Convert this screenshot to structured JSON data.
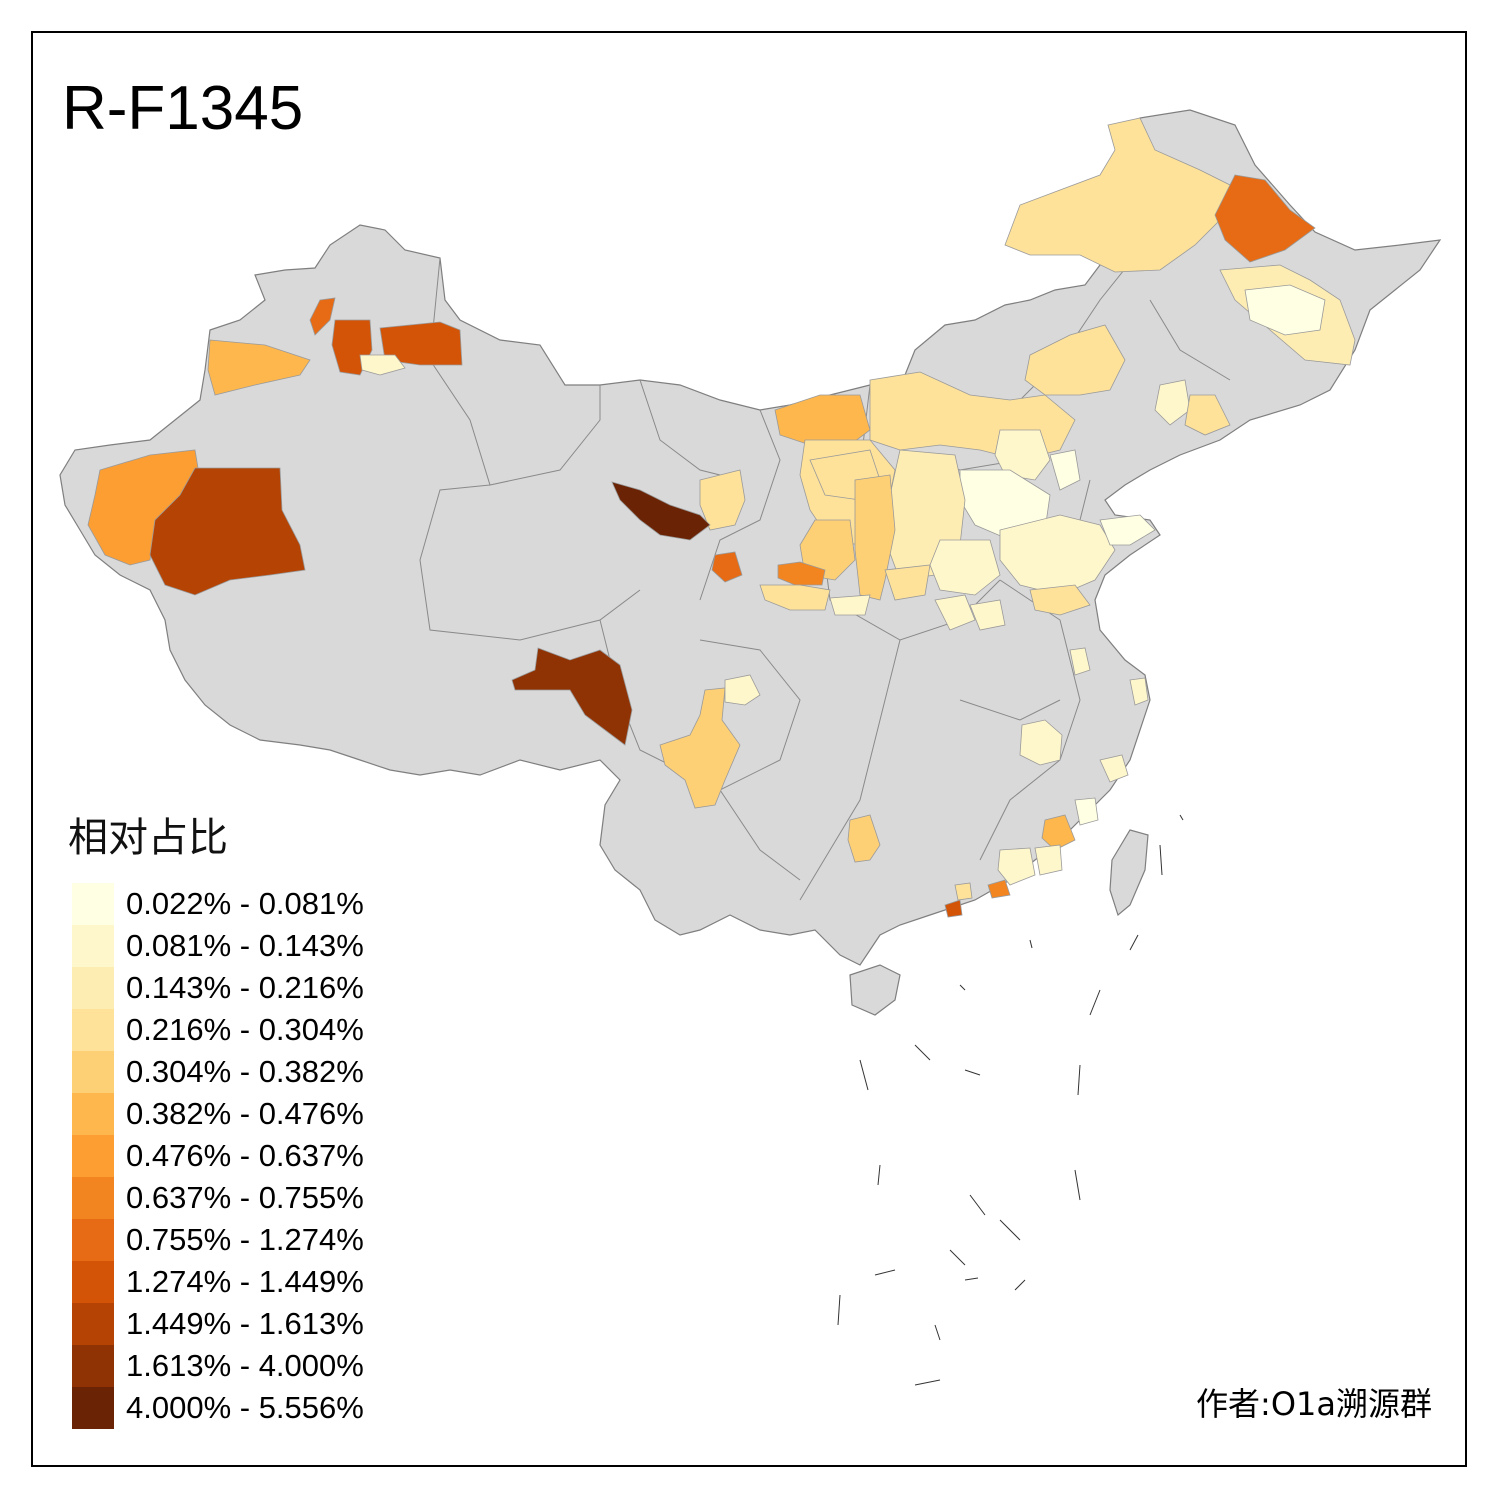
{
  "title": "R-F1345",
  "legend": {
    "title": "相对占比",
    "items": [
      {
        "label": "0.022% - 0.081%",
        "color": "#FFFFE4"
      },
      {
        "label": "0.081% - 0.143%",
        "color": "#FFF7CC"
      },
      {
        "label": "0.143% - 0.216%",
        "color": "#FEEDB3"
      },
      {
        "label": "0.216% - 0.304%",
        "color": "#FEE29A"
      },
      {
        "label": "0.304% - 0.382%",
        "color": "#FED076"
      },
      {
        "label": "0.382% - 0.476%",
        "color": "#FEB74C"
      },
      {
        "label": "0.476% - 0.637%",
        "color": "#FD9E33"
      },
      {
        "label": "0.637% - 0.755%",
        "color": "#F38521"
      },
      {
        "label": "0.755% - 1.274%",
        "color": "#E66B14"
      },
      {
        "label": "1.274% - 1.449%",
        "color": "#D35407"
      },
      {
        "label": "1.449% - 1.613%",
        "color": "#B44304"
      },
      {
        "label": "1.613% - 4.000%",
        "color": "#8F3204"
      },
      {
        "label": "4.000% - 5.556%",
        "color": "#6A2405"
      }
    ]
  },
  "author": "作者:O1a溯源群",
  "colors": {
    "land": "#D9D9D9",
    "border": "#7F7F7F",
    "frame": "#000000"
  }
}
